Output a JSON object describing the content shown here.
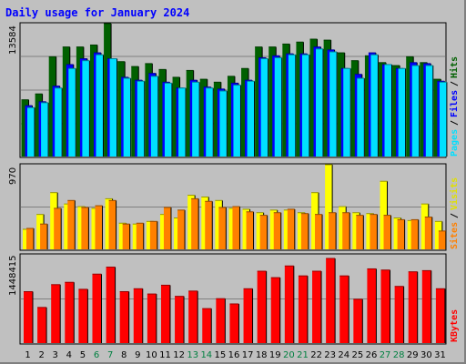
{
  "title": "Daily usage for January 2024",
  "colors": {
    "hits": "#006000",
    "files": "#0000ff",
    "pages": "#00e0ff",
    "visits": "#ffff00",
    "sites": "#ff8000",
    "kbytes": "#ff0000",
    "weekend_label": "#008040",
    "weekday_label": "#000000"
  },
  "legend": {
    "pages": "Pages",
    "files": "Files",
    "hits": "Hits",
    "sites": "Sites",
    "visits": "Visits",
    "kbytes": "KBytes",
    "slash": "/"
  },
  "chart_data": [
    {
      "type": "bar",
      "panel": "hits-files-pages",
      "ymax_label": "13584",
      "ylim": [
        0,
        13584
      ],
      "categories": [
        "1",
        "2",
        "3",
        "4",
        "5",
        "6",
        "7",
        "8",
        "9",
        "10",
        "11",
        "12",
        "13",
        "14",
        "15",
        "16",
        "17",
        "18",
        "19",
        "20",
        "21",
        "22",
        "23",
        "24",
        "25",
        "26",
        "27",
        "28",
        "29",
        "30",
        "31"
      ],
      "weekend": [
        6,
        7,
        13,
        14,
        20,
        21,
        27,
        28
      ],
      "series": [
        {
          "name": "Hits",
          "values": [
            5800,
            6400,
            10200,
            11200,
            11200,
            11400,
            13584,
            9700,
            9200,
            9500,
            8900,
            8100,
            8800,
            7900,
            7600,
            8200,
            9000,
            11200,
            11200,
            11500,
            11700,
            12000,
            11900,
            10600,
            9800,
            10300,
            9600,
            9300,
            10200,
            9600,
            7900
          ]
        },
        {
          "name": "Files",
          "values": [
            5200,
            5600,
            7200,
            9400,
            10000,
            10600,
            10000,
            8100,
            7800,
            8500,
            7600,
            7000,
            7800,
            7100,
            6900,
            7500,
            7800,
            10100,
            10300,
            10500,
            10500,
            11200,
            10900,
            9000,
            8400,
            10600,
            9400,
            9000,
            9600,
            9500,
            7700
          ]
        },
        {
          "name": "Pages",
          "values": [
            5000,
            5500,
            7000,
            9000,
            9800,
            10400,
            10000,
            8000,
            7700,
            8200,
            7500,
            7000,
            7600,
            7000,
            6700,
            7300,
            7700,
            10000,
            10100,
            10400,
            10400,
            11000,
            10700,
            9000,
            8000,
            10400,
            9400,
            9000,
            9300,
            9300,
            7600
          ]
        }
      ]
    },
    {
      "type": "bar",
      "panel": "visits-sites",
      "ymax_label": "970",
      "ylim": [
        0,
        970
      ],
      "categories": [
        "1",
        "2",
        "3",
        "4",
        "5",
        "6",
        "7",
        "8",
        "9",
        "10",
        "11",
        "12",
        "13",
        "14",
        "15",
        "16",
        "17",
        "18",
        "19",
        "20",
        "21",
        "22",
        "23",
        "24",
        "25",
        "26",
        "27",
        "28",
        "29",
        "30",
        "31"
      ],
      "series": [
        {
          "name": "Visits",
          "values": [
            230,
            400,
            650,
            520,
            490,
            470,
            580,
            300,
            290,
            320,
            400,
            360,
            620,
            600,
            560,
            470,
            460,
            420,
            450,
            450,
            420,
            650,
            970,
            490,
            420,
            410,
            780,
            360,
            330,
            520,
            320
          ]
        },
        {
          "name": "Sites",
          "values": [
            240,
            290,
            470,
            560,
            480,
            500,
            560,
            290,
            300,
            320,
            480,
            450,
            580,
            550,
            480,
            490,
            430,
            390,
            420,
            460,
            410,
            400,
            420,
            420,
            390,
            400,
            390,
            340,
            340,
            370,
            210
          ]
        }
      ]
    },
    {
      "type": "bar",
      "panel": "kbytes",
      "ymax_label": "1448415",
      "ylim": [
        0,
        1448415
      ],
      "categories": [
        "1",
        "2",
        "3",
        "4",
        "5",
        "6",
        "7",
        "8",
        "9",
        "10",
        "11",
        "12",
        "13",
        "14",
        "15",
        "16",
        "17",
        "18",
        "19",
        "20",
        "21",
        "22",
        "23",
        "24",
        "25",
        "26",
        "27",
        "28",
        "29",
        "30",
        "31"
      ],
      "series": [
        {
          "name": "KBytes",
          "values": [
            880000,
            610000,
            1000000,
            1040000,
            920000,
            1180000,
            1300000,
            880000,
            930000,
            840000,
            990000,
            800000,
            890000,
            590000,
            760000,
            670000,
            930000,
            1230000,
            1120000,
            1320000,
            1150000,
            1230000,
            1448415,
            1150000,
            750000,
            1270000,
            1250000,
            970000,
            1220000,
            1240000,
            930000
          ]
        }
      ]
    }
  ]
}
